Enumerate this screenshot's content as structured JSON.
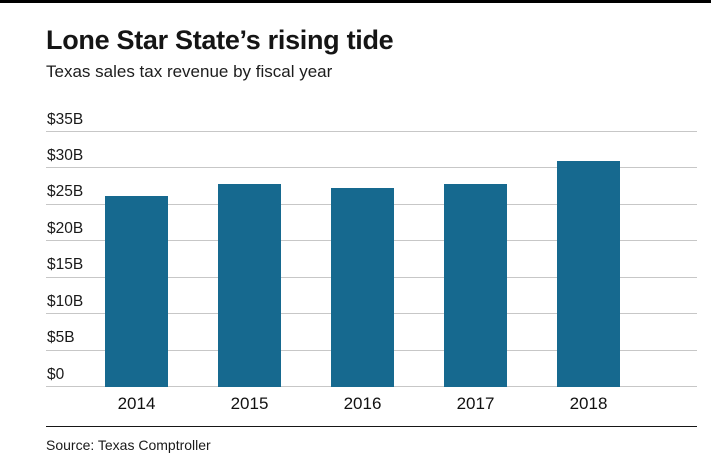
{
  "header": {
    "title": "Lone Star State’s rising tide",
    "subtitle": "Texas sales tax revenue by fiscal year"
  },
  "source": "Source: Texas Comptroller",
  "colors": {
    "bar": "#16698f",
    "gridline": "#c7c7c7",
    "divider": "#161616"
  },
  "chart_data": {
    "type": "bar",
    "categories": [
      "2014",
      "2015",
      "2016",
      "2017",
      "2018"
    ],
    "values": [
      26.2,
      27.8,
      27.3,
      27.9,
      31.0
    ],
    "title": "Lone Star State’s rising tide",
    "subtitle": "Texas sales tax revenue by fiscal year",
    "xlabel": "",
    "ylabel": "",
    "ylim": [
      0,
      35
    ],
    "ytick_step": 5,
    "ytick_labels": [
      "$0",
      "$5B",
      "$10B",
      "$15B",
      "$20B",
      "$25B",
      "$30B",
      "$35B"
    ],
    "grid": true,
    "legend": "none",
    "source": "Source: Texas Comptroller"
  }
}
